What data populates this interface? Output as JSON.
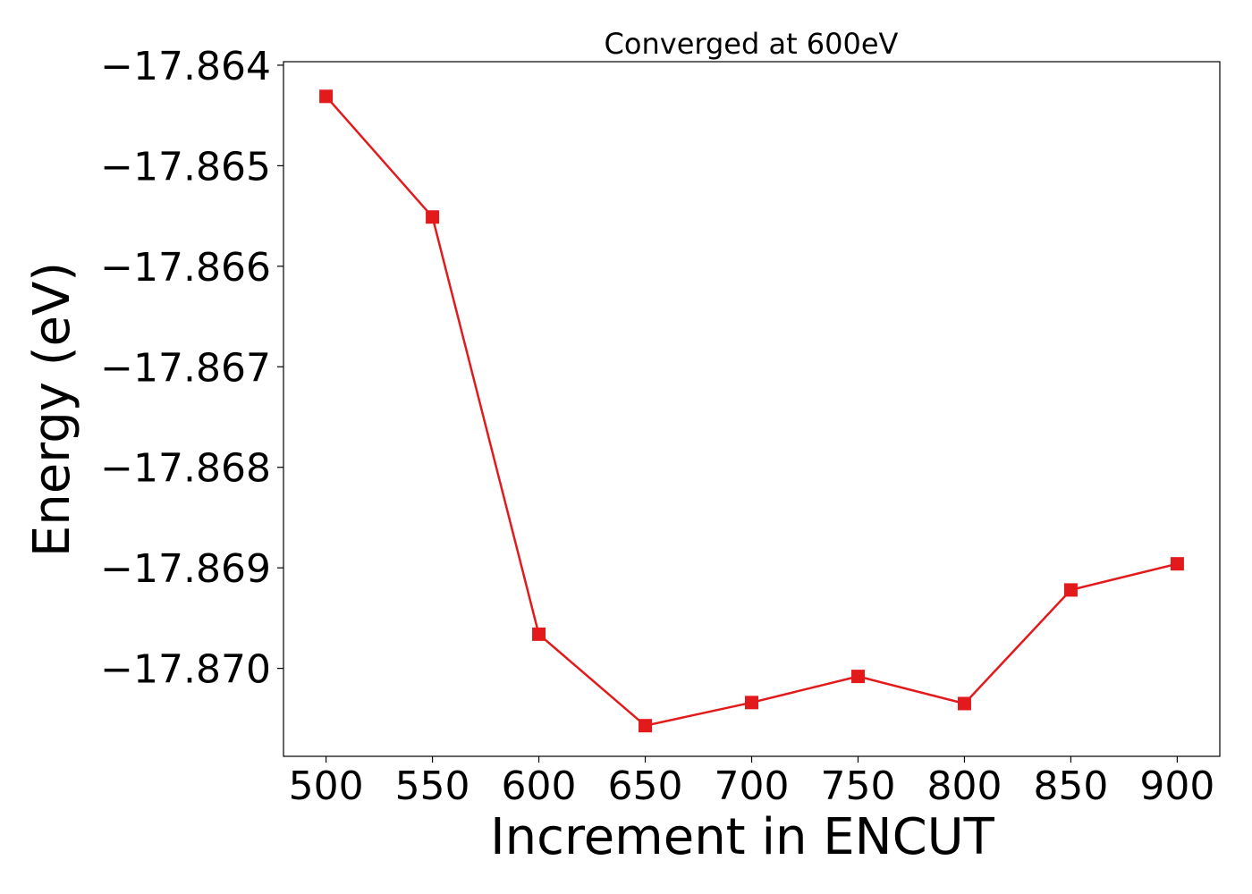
{
  "chart_data": {
    "type": "line",
    "title": "Converged at 600eV",
    "xlabel": "Increment in ENCUT",
    "ylabel": "Energy (eV)",
    "x": [
      500,
      550,
      600,
      650,
      700,
      750,
      800,
      850,
      900
    ],
    "series": [
      {
        "values": [
          -17.86431,
          -17.86551,
          -17.86966,
          -17.87057,
          -17.87034,
          -17.87008,
          -17.87035,
          -17.86922,
          -17.86896
        ],
        "color": "#e31a1c",
        "marker": "square"
      }
    ],
    "xticks": [
      500,
      550,
      600,
      650,
      700,
      750,
      800,
      850,
      900
    ],
    "xtick_labels": [
      "500",
      "550",
      "600",
      "650",
      "700",
      "750",
      "800",
      "850",
      "900"
    ],
    "yticks": [
      -17.864,
      -17.865,
      -17.866,
      -17.867,
      -17.868,
      -17.869,
      -17.87
    ],
    "ytick_labels": [
      "−17.864",
      "−17.865",
      "−17.866",
      "−17.867",
      "−17.868",
      "−17.869",
      "−17.870"
    ],
    "xlim": [
      480,
      920
    ],
    "ylim": [
      -17.870875,
      -17.863965
    ],
    "grid": false,
    "legend": "none"
  }
}
